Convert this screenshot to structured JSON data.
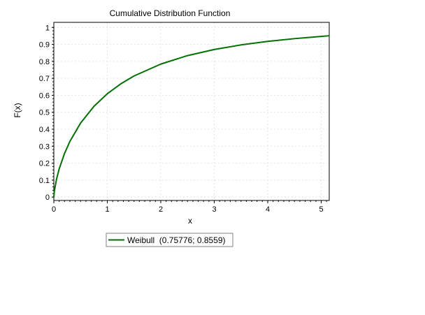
{
  "chart_data": {
    "type": "line",
    "title": "Cumulative Distribution Function",
    "xlabel": "x",
    "ylabel": "F(x)",
    "xlim": [
      0,
      5.15
    ],
    "ylim": [
      -0.02,
      1.03
    ],
    "x_ticks": [
      0,
      1,
      2,
      3,
      4,
      5
    ],
    "x_tick_labels": [
      "0",
      "1",
      "2",
      "3",
      "4",
      "5"
    ],
    "y_ticks": [
      0,
      0.1,
      0.2,
      0.3,
      0.4,
      0.5,
      0.6,
      0.7,
      0.8,
      0.9,
      1
    ],
    "y_tick_labels": [
      "0",
      "0.1",
      "0.2",
      "0.3",
      "0.4",
      "0.5",
      "0.6",
      "0.7",
      "0.8",
      "0.9",
      "1"
    ],
    "grid": true,
    "legend_position": "bottom-left",
    "series": [
      {
        "name": "Weibull  (0.75776; 0.8559)",
        "color": "#007000",
        "x": [
          0,
          0.01,
          0.05,
          0.1,
          0.2,
          0.3,
          0.5,
          0.75,
          1,
          1.25,
          1.5,
          2,
          2.5,
          3,
          3.5,
          4,
          4.5,
          5,
          5.15
        ],
        "y": [
          0,
          0.036,
          0.105,
          0.166,
          0.257,
          0.328,
          0.436,
          0.535,
          0.609,
          0.667,
          0.714,
          0.784,
          0.834,
          0.87,
          0.897,
          0.918,
          0.934,
          0.947,
          0.951
        ]
      }
    ]
  }
}
